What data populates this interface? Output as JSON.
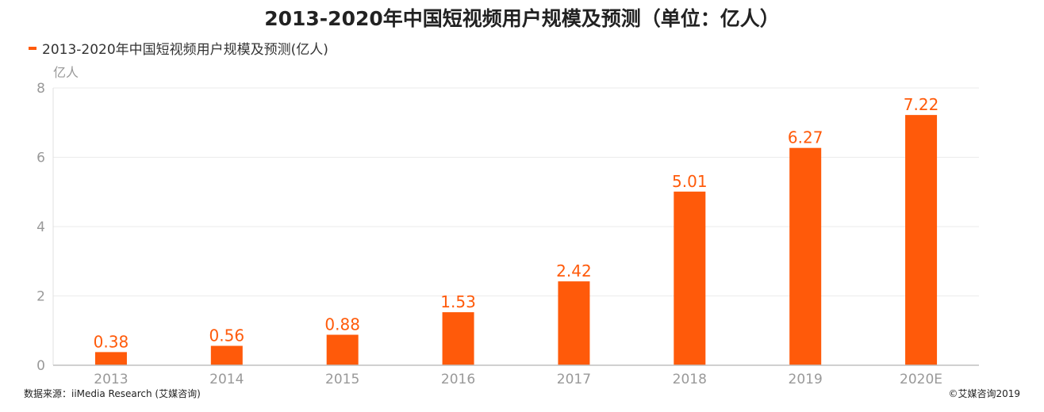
{
  "chart_data": {
    "type": "bar",
    "title": "2013-2020年中国短视频用户规模及预测（单位：亿人）",
    "legend": [
      "2013-2020年中国短视频用户规模及预测(亿人)"
    ],
    "legend_position": "top-left",
    "ylabel": "亿人",
    "xlabel": "",
    "categories": [
      "2013",
      "2014",
      "2015",
      "2016",
      "2017",
      "2018",
      "2019",
      "2020E"
    ],
    "series": [
      {
        "name": "2013-2020年中国短视频用户规模及预测(亿人)",
        "values": [
          0.38,
          0.56,
          0.88,
          1.53,
          2.42,
          5.01,
          6.27,
          7.22
        ]
      }
    ],
    "data_labels": [
      "0.38",
      "0.56",
      "0.88",
      "1.53",
      "2.42",
      "5.01",
      "6.27",
      "7.22"
    ],
    "ylim": [
      0,
      8
    ],
    "yticks": [
      0,
      2,
      4,
      6,
      8
    ],
    "grid": true,
    "color": "#ff5a0a"
  },
  "footer": {
    "source": "数据来源：iiMedia Research (艾媒咨询)",
    "copyright": "©艾媒咨询2019"
  }
}
